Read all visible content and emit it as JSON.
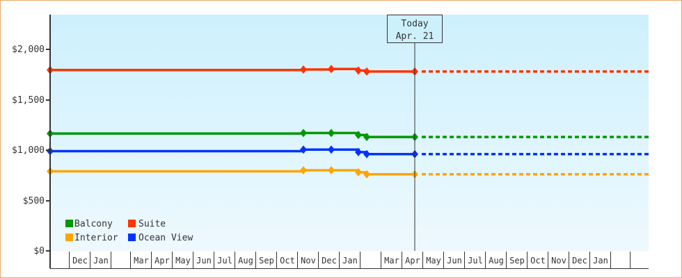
{
  "chart_data": {
    "type": "line",
    "title": "",
    "xlabel": "",
    "ylabel": "",
    "ylim": [
      0,
      2350
    ],
    "y_ticks": [
      {
        "value": 0,
        "label": "$0"
      },
      {
        "value": 500,
        "label": "$500"
      },
      {
        "value": 1000,
        "label": "$1,000"
      },
      {
        "value": 1500,
        "label": "$1,500"
      },
      {
        "value": 2000,
        "label": "$2,000"
      }
    ],
    "x_month_labels": [
      "",
      "Dec",
      "Jan",
      "",
      "Mar",
      "Apr",
      "May",
      "Jun",
      "Jul",
      "Aug",
      "Sep",
      "Oct",
      "Nov",
      "Dec",
      "Jan",
      "",
      "Mar",
      "Apr",
      "May",
      "Jun",
      "Jul",
      "Aug",
      "Sep",
      "Oct",
      "Nov",
      "Dec",
      "Jan",
      "",
      ""
    ],
    "x_dividers": [
      71,
      98,
      128,
      158,
      186,
      216,
      246,
      276,
      306,
      336,
      366,
      396,
      426,
      456,
      486,
      516,
      546,
      576,
      606,
      636,
      666,
      696,
      726,
      756,
      786,
      816,
      846,
      876,
      904,
      931
    ],
    "today_marker": {
      "line1": "Today",
      "line2": "Apr. 21",
      "x": 595
    },
    "legend": {
      "position": "lower-left",
      "entries": [
        "Balcony",
        "Suite",
        "Interior",
        "Ocean View"
      ]
    },
    "grid": false,
    "series": [
      {
        "name": "Suite",
        "color": "#ff3300",
        "points": [
          {
            "x": 71,
            "value": 1795
          },
          {
            "x": 435,
            "value": 1800
          },
          {
            "x": 475,
            "value": 1805
          },
          {
            "x": 514,
            "value": 1790
          },
          {
            "x": 526,
            "value": 1780
          },
          {
            "x": 595,
            "value": 1780
          }
        ],
        "forecast_value": 1780
      },
      {
        "name": "Balcony",
        "color": "#009900",
        "points": [
          {
            "x": 71,
            "value": 1165
          },
          {
            "x": 435,
            "value": 1170
          },
          {
            "x": 475,
            "value": 1170
          },
          {
            "x": 514,
            "value": 1150
          },
          {
            "x": 526,
            "value": 1130
          },
          {
            "x": 595,
            "value": 1130
          }
        ],
        "forecast_value": 1130
      },
      {
        "name": "Ocean View",
        "color": "#0033ff",
        "points": [
          {
            "x": 71,
            "value": 990
          },
          {
            "x": 435,
            "value": 1005
          },
          {
            "x": 475,
            "value": 1005
          },
          {
            "x": 514,
            "value": 980
          },
          {
            "x": 526,
            "value": 960
          },
          {
            "x": 595,
            "value": 960
          }
        ],
        "forecast_value": 960
      },
      {
        "name": "Interior",
        "color": "#ffa500",
        "points": [
          {
            "x": 71,
            "value": 790
          },
          {
            "x": 435,
            "value": 800
          },
          {
            "x": 475,
            "value": 800
          },
          {
            "x": 514,
            "value": 780
          },
          {
            "x": 526,
            "value": 760
          },
          {
            "x": 595,
            "value": 760
          }
        ],
        "forecast_value": 760
      }
    ]
  },
  "legend": {
    "balcony": "Balcony",
    "suite": "Suite",
    "interior": "Interior",
    "ocean_view": "Ocean View"
  },
  "today": {
    "line1": "Today",
    "line2": "Apr. 21"
  },
  "colors": {
    "border": "#e8a868",
    "plot_bg_top": "#cdf0fd",
    "plot_bg_bottom": "#eef9fe",
    "axis": "#333333"
  }
}
